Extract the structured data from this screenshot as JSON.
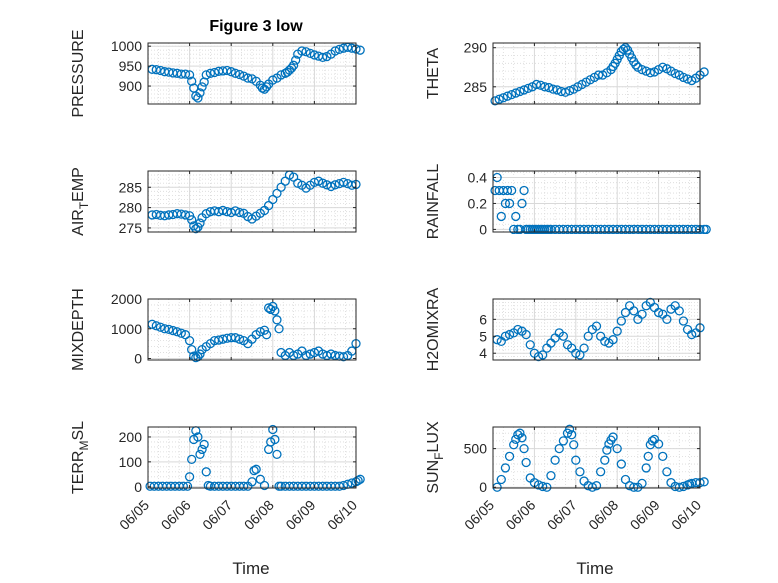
{
  "figure": {
    "title": "Figure 3 low",
    "xlabel": "Time"
  },
  "style": {
    "marker_color": "#0072BD",
    "grid_color": "#d9d9d9",
    "axis_color": "#262626"
  },
  "chart_data": [
    {
      "type": "scatter",
      "ylabel": "PRESSURE",
      "xlim": [
        "06/05",
        "06/10"
      ],
      "ylim": [
        855,
        1008
      ],
      "yticks": [
        900,
        950,
        1000
      ],
      "x": [
        0.1,
        0.2,
        0.3,
        0.4,
        0.5,
        0.6,
        0.7,
        0.8,
        0.9,
        1.0,
        1.05,
        1.1,
        1.15,
        1.2,
        1.25,
        1.3,
        1.35,
        1.4,
        1.5,
        1.6,
        1.7,
        1.8,
        1.9,
        2.0,
        2.1,
        2.2,
        2.3,
        2.4,
        2.5,
        2.6,
        2.7,
        2.75,
        2.8,
        2.85,
        2.9,
        3.0,
        3.1,
        3.2,
        3.3,
        3.35,
        3.4,
        3.45,
        3.5,
        3.55,
        3.6,
        3.7,
        3.8,
        3.9,
        4.0,
        4.1,
        4.2,
        4.3,
        4.4,
        4.5,
        4.6,
        4.7,
        4.8,
        4.9,
        5.0,
        5.1
      ],
      "y": [
        942,
        941,
        939,
        936,
        935,
        933,
        932,
        930,
        930,
        928,
        912,
        895,
        875,
        870,
        883,
        898,
        910,
        928,
        932,
        934,
        937,
        938,
        939,
        936,
        932,
        929,
        925,
        920,
        918,
        912,
        902,
        895,
        892,
        898,
        905,
        915,
        920,
        928,
        932,
        935,
        940,
        945,
        952,
        965,
        980,
        988,
        986,
        982,
        978,
        975,
        972,
        974,
        980,
        988,
        992,
        995,
        997,
        995,
        993,
        990
      ]
    },
    {
      "type": "scatter",
      "ylabel": "THETA",
      "xlim": [
        "06/05",
        "06/10"
      ],
      "ylim": [
        282.8,
        290.6
      ],
      "yticks": [
        285,
        290
      ],
      "x": [
        0.05,
        0.15,
        0.25,
        0.35,
        0.45,
        0.55,
        0.65,
        0.75,
        0.85,
        0.95,
        1.05,
        1.15,
        1.25,
        1.35,
        1.45,
        1.55,
        1.65,
        1.75,
        1.85,
        1.95,
        2.05,
        2.15,
        2.25,
        2.35,
        2.45,
        2.55,
        2.65,
        2.75,
        2.85,
        2.9,
        2.95,
        3.0,
        3.05,
        3.1,
        3.15,
        3.2,
        3.25,
        3.3,
        3.35,
        3.4,
        3.45,
        3.5,
        3.6,
        3.7,
        3.8,
        3.9,
        4.0,
        4.1,
        4.2,
        4.3,
        4.4,
        4.5,
        4.6,
        4.7,
        4.8,
        4.9,
        5.0,
        5.1
      ],
      "y": [
        283.2,
        283.4,
        283.6,
        283.8,
        284.0,
        284.2,
        284.4,
        284.6,
        284.8,
        285.0,
        285.3,
        285.2,
        285.0,
        284.9,
        284.7,
        284.6,
        284.4,
        284.3,
        284.5,
        284.7,
        285.0,
        285.3,
        285.6,
        285.9,
        286.2,
        286.5,
        286.5,
        286.8,
        287.2,
        287.6,
        288.0,
        288.5,
        289.0,
        289.5,
        289.8,
        290.0,
        289.7,
        289.2,
        288.7,
        288.2,
        287.8,
        287.5,
        287.2,
        287.0,
        286.8,
        286.9,
        287.2,
        287.5,
        287.3,
        287.0,
        286.7,
        286.5,
        286.2,
        286.0,
        285.8,
        286.1,
        286.5,
        286.9
      ]
    },
    {
      "type": "scatter",
      "ylabel": "AIR_TEMP",
      "xlim": [
        "06/05",
        "06/10"
      ],
      "ylim": [
        274,
        289
      ],
      "yticks": [
        275,
        280,
        285
      ],
      "x": [
        0.1,
        0.2,
        0.3,
        0.4,
        0.5,
        0.6,
        0.7,
        0.8,
        0.9,
        1.0,
        1.05,
        1.1,
        1.15,
        1.2,
        1.25,
        1.3,
        1.4,
        1.5,
        1.6,
        1.7,
        1.8,
        1.9,
        2.0,
        2.1,
        2.2,
        2.3,
        2.4,
        2.5,
        2.6,
        2.7,
        2.8,
        2.9,
        3.0,
        3.1,
        3.2,
        3.3,
        3.4,
        3.5,
        3.6,
        3.7,
        3.8,
        3.9,
        4.0,
        4.1,
        4.2,
        4.3,
        4.4,
        4.5,
        4.6,
        4.7,
        4.8,
        4.9,
        5.0
      ],
      "y": [
        278.2,
        278.3,
        278.1,
        278.0,
        278.2,
        278.3,
        278.5,
        278.4,
        278.2,
        278.0,
        277.0,
        275.5,
        274.8,
        275.2,
        276.2,
        277.5,
        278.5,
        279.0,
        279.2,
        279.0,
        279.3,
        279.0,
        278.8,
        279.2,
        278.8,
        278.6,
        277.8,
        277.2,
        277.9,
        278.6,
        279.3,
        280.5,
        282.0,
        283.5,
        285.0,
        286.5,
        288.0,
        287.5,
        286.0,
        285.5,
        284.8,
        285.5,
        286.2,
        286.5,
        286.0,
        285.6,
        285.2,
        285.6,
        285.9,
        286.2,
        285.9,
        285.5,
        285.7
      ]
    },
    {
      "type": "scatter",
      "ylabel": "RAINFALL",
      "xlim": [
        "06/05",
        "06/10"
      ],
      "ylim": [
        -0.02,
        0.45
      ],
      "yticks": [
        0,
        0.2,
        0.4
      ],
      "x": [
        0.05,
        0.1,
        0.15,
        0.2,
        0.25,
        0.3,
        0.35,
        0.4,
        0.45,
        0.5,
        0.55,
        0.6,
        0.65,
        0.7,
        0.75,
        0.8,
        0.85,
        0.9,
        0.95,
        1.0,
        1.05,
        1.1,
        1.15,
        1.2,
        1.25,
        1.3,
        1.35,
        1.4,
        1.5,
        1.6,
        1.7,
        1.8,
        1.9,
        2.0,
        2.1,
        2.2,
        2.3,
        2.4,
        2.5,
        2.6,
        2.7,
        2.8,
        2.9,
        3.0,
        3.1,
        3.2,
        3.3,
        3.4,
        3.5,
        3.6,
        3.7,
        3.8,
        3.9,
        4.0,
        4.1,
        4.2,
        4.3,
        4.4,
        4.5,
        4.6,
        4.7,
        4.8,
        4.9,
        5.0,
        5.1,
        5.15
      ],
      "y": [
        0.3,
        0.4,
        0.3,
        0.1,
        0.3,
        0.2,
        0.3,
        0.2,
        0.3,
        0.0,
        0.1,
        0.0,
        0.0,
        0.2,
        0.3,
        0.0,
        0.0,
        0.0,
        0.0,
        0.0,
        0.0,
        0.0,
        0.0,
        0.0,
        0.0,
        0.0,
        0.0,
        0.0,
        0.0,
        0.0,
        0.0,
        0.0,
        0.0,
        0.0,
        0.0,
        0.0,
        0.0,
        0.0,
        0.0,
        0.0,
        0.0,
        0.0,
        0.0,
        0.0,
        0.0,
        0.0,
        0.0,
        0.0,
        0.0,
        0.0,
        0.0,
        0.0,
        0.0,
        0.0,
        0.0,
        0.0,
        0.0,
        0.0,
        0.0,
        0.0,
        0.0,
        0.0,
        0.0,
        0.0,
        0.0,
        0.0
      ]
    },
    {
      "type": "scatter",
      "ylabel": "MIXDEPTH",
      "xlim": [
        "06/05",
        "06/10"
      ],
      "ylim": [
        -50,
        2000
      ],
      "yticks": [
        0,
        1000,
        2000
      ],
      "x": [
        0.1,
        0.2,
        0.3,
        0.4,
        0.5,
        0.6,
        0.7,
        0.8,
        0.9,
        1.0,
        1.05,
        1.1,
        1.15,
        1.2,
        1.25,
        1.3,
        1.4,
        1.5,
        1.6,
        1.7,
        1.8,
        1.9,
        2.0,
        2.1,
        2.2,
        2.3,
        2.4,
        2.5,
        2.6,
        2.7,
        2.8,
        2.85,
        2.9,
        2.95,
        3.0,
        3.05,
        3.1,
        3.15,
        3.2,
        3.3,
        3.4,
        3.5,
        3.6,
        3.7,
        3.8,
        3.9,
        4.0,
        4.1,
        4.2,
        4.3,
        4.4,
        4.5,
        4.6,
        4.7,
        4.8,
        4.9,
        5.0
      ],
      "y": [
        1150,
        1100,
        1050,
        1000,
        980,
        940,
        900,
        850,
        800,
        600,
        300,
        80,
        30,
        60,
        150,
        300,
        400,
        500,
        600,
        620,
        650,
        680,
        700,
        700,
        650,
        600,
        500,
        650,
        800,
        900,
        950,
        800,
        1700,
        1650,
        1750,
        1600,
        1300,
        1000,
        200,
        100,
        200,
        100,
        150,
        250,
        100,
        150,
        200,
        250,
        150,
        100,
        150,
        100,
        80,
        60,
        100,
        250,
        500
      ]
    },
    {
      "type": "scatter",
      "ylabel": "H2OMIXRA",
      "xlim": [
        "06/05",
        "06/10"
      ],
      "ylim": [
        3.6,
        7.2
      ],
      "yticks": [
        4,
        5,
        6
      ],
      "x": [
        0.1,
        0.2,
        0.3,
        0.4,
        0.5,
        0.6,
        0.7,
        0.8,
        0.9,
        1.0,
        1.1,
        1.2,
        1.3,
        1.4,
        1.5,
        1.6,
        1.7,
        1.8,
        1.9,
        2.0,
        2.1,
        2.2,
        2.3,
        2.4,
        2.5,
        2.6,
        2.7,
        2.8,
        2.9,
        3.0,
        3.1,
        3.2,
        3.3,
        3.4,
        3.5,
        3.6,
        3.7,
        3.8,
        3.9,
        4.0,
        4.1,
        4.2,
        4.3,
        4.4,
        4.5,
        4.6,
        4.7,
        4.8,
        4.9,
        5.0
      ],
      "y": [
        4.8,
        4.7,
        5.0,
        5.1,
        5.2,
        5.4,
        5.3,
        5.1,
        4.5,
        4.0,
        3.8,
        3.9,
        4.3,
        4.6,
        4.9,
        5.2,
        5.0,
        4.5,
        4.3,
        4.0,
        3.9,
        4.3,
        5.0,
        5.4,
        5.6,
        5.0,
        4.7,
        4.6,
        4.8,
        5.3,
        5.9,
        6.4,
        6.8,
        6.5,
        6.0,
        6.3,
        6.8,
        7.0,
        6.7,
        6.4,
        6.3,
        6.0,
        6.6,
        6.8,
        6.5,
        5.9,
        5.4,
        5.1,
        5.2,
        5.5
      ]
    },
    {
      "type": "scatter",
      "ylabel": "TERR_MSL",
      "xlim": [
        "06/05",
        "06/10"
      ],
      "ylim": [
        -5,
        240
      ],
      "yticks": [
        0,
        100,
        200
      ],
      "x": [
        0.05,
        0.15,
        0.25,
        0.35,
        0.45,
        0.55,
        0.65,
        0.75,
        0.85,
        0.95,
        1.0,
        1.05,
        1.1,
        1.15,
        1.2,
        1.25,
        1.3,
        1.35,
        1.4,
        1.45,
        1.5,
        1.6,
        1.7,
        1.8,
        1.9,
        2.0,
        2.1,
        2.2,
        2.3,
        2.4,
        2.5,
        2.55,
        2.6,
        2.7,
        2.8,
        2.9,
        2.95,
        3.0,
        3.05,
        3.1,
        3.15,
        3.2,
        3.3,
        3.4,
        3.5,
        3.6,
        3.7,
        3.8,
        3.9,
        4.0,
        4.1,
        4.2,
        4.3,
        4.4,
        4.5,
        4.6,
        4.7,
        4.8,
        4.9,
        5.0,
        5.05,
        5.1
      ],
      "y": [
        2,
        2,
        2,
        2,
        2,
        2,
        2,
        2,
        2,
        2,
        40,
        110,
        190,
        225,
        200,
        130,
        150,
        170,
        60,
        5,
        2,
        2,
        2,
        2,
        2,
        2,
        2,
        2,
        2,
        2,
        20,
        65,
        70,
        30,
        5,
        150,
        180,
        230,
        190,
        130,
        2,
        2,
        2,
        2,
        2,
        2,
        2,
        2,
        2,
        2,
        2,
        2,
        2,
        2,
        2,
        2,
        5,
        10,
        15,
        20,
        25,
        30
      ]
    },
    {
      "type": "scatter",
      "ylabel": "SUN_FLUX",
      "xlim": [
        "06/05",
        "06/10"
      ],
      "ylim": [
        -10,
        780
      ],
      "yticks": [
        0,
        500
      ],
      "x": [
        0.1,
        0.2,
        0.3,
        0.4,
        0.5,
        0.55,
        0.6,
        0.65,
        0.7,
        0.75,
        0.8,
        0.9,
        1.0,
        1.1,
        1.2,
        1.3,
        1.4,
        1.5,
        1.6,
        1.7,
        1.8,
        1.85,
        1.9,
        1.95,
        2.0,
        2.1,
        2.2,
        2.3,
        2.4,
        2.5,
        2.6,
        2.7,
        2.75,
        2.8,
        2.85,
        2.9,
        3.0,
        3.1,
        3.2,
        3.3,
        3.4,
        3.5,
        3.6,
        3.7,
        3.75,
        3.8,
        3.85,
        3.9,
        4.0,
        4.1,
        4.2,
        4.3,
        4.4,
        4.5,
        4.6,
        4.7,
        4.75,
        4.8,
        4.9,
        5.0,
        5.1
      ],
      "y": [
        0,
        100,
        250,
        400,
        550,
        620,
        680,
        700,
        640,
        500,
        320,
        120,
        60,
        30,
        10,
        0,
        150,
        350,
        500,
        600,
        700,
        750,
        680,
        550,
        350,
        200,
        80,
        20,
        0,
        20,
        200,
        350,
        480,
        560,
        610,
        650,
        500,
        300,
        100,
        20,
        0,
        0,
        50,
        250,
        400,
        550,
        600,
        620,
        560,
        400,
        200,
        60,
        10,
        0,
        10,
        30,
        40,
        50,
        60,
        60,
        70
      ]
    }
  ]
}
